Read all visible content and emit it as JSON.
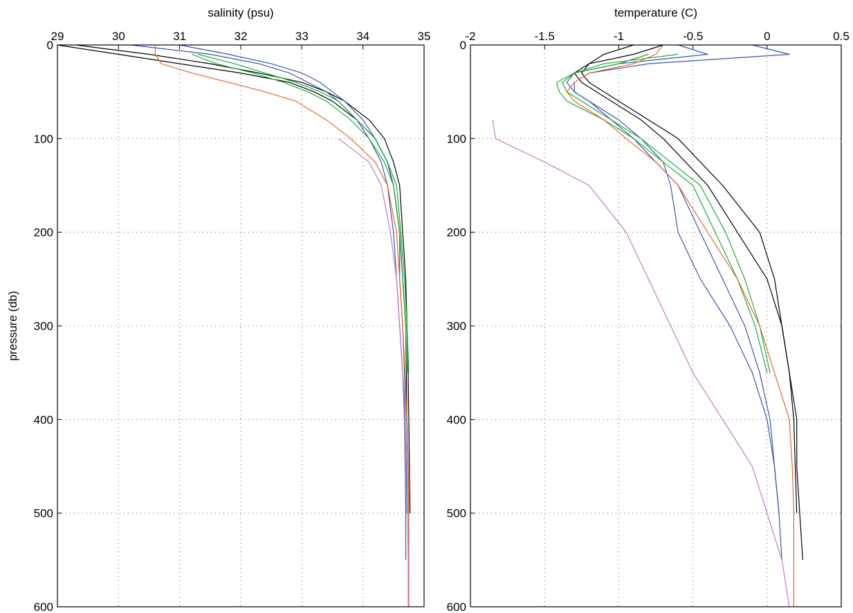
{
  "chart_data": [
    {
      "type": "line",
      "xlabel": "salinity (psu)",
      "ylabel": "pressure (db)",
      "xlim": [
        29,
        35
      ],
      "xticks": [
        29,
        30,
        31,
        32,
        33,
        34,
        35
      ],
      "ylim": [
        0,
        600
      ],
      "yticks": [
        0,
        100,
        200,
        300,
        400,
        500,
        600
      ],
      "y_reversed": true,
      "x_axis_position": "top",
      "grid": true,
      "y": [
        0,
        10,
        20,
        30,
        40,
        50,
        60,
        80,
        100,
        125,
        150,
        200,
        250,
        300,
        350,
        400,
        450,
        500,
        550,
        600
      ],
      "series": [
        {
          "color": "#000000",
          "values": [
            29,
            30,
            31,
            32,
            32.8,
            33.2,
            33.5,
            33.9,
            34.2,
            34.4,
            34.5,
            34.6,
            34.65,
            34.7,
            34.71,
            34.72,
            34.74,
            34.75,
            34.75,
            null
          ]
        },
        {
          "color": "#000000",
          "values": [
            29.3,
            30.5,
            31.5,
            32.3,
            33.0,
            33.4,
            33.7,
            34.1,
            34.35,
            34.5,
            34.6,
            34.65,
            34.7,
            34.72,
            34.74,
            34.75,
            34.76,
            34.77,
            null,
            null
          ]
        },
        {
          "color": "#3b55a8",
          "values": [
            30.2,
            31.5,
            32.3,
            32.8,
            33.1,
            33.4,
            33.6,
            33.9,
            34.1,
            34.3,
            34.4,
            34.5,
            34.55,
            34.6,
            34.65,
            34.68,
            34.69,
            34.7,
            34.7,
            null
          ]
        },
        {
          "color": "#3b55a8",
          "values": [
            31.0,
            31.8,
            32.5,
            33.0,
            33.3,
            33.5,
            33.7,
            34.0,
            34.2,
            34.4,
            34.5,
            34.6,
            34.6,
            34.65,
            34.68,
            34.7,
            34.71,
            34.72,
            null,
            null
          ]
        },
        {
          "color": "#1aab3c",
          "values": [
            null,
            31.2,
            31.6,
            32.2,
            32.7,
            33.1,
            33.4,
            33.8,
            34.1,
            34.35,
            34.5,
            34.6,
            34.65,
            34.7,
            34.72,
            null,
            null,
            null,
            null,
            null
          ]
        },
        {
          "color": "#1aab3c",
          "values": [
            null,
            31.3,
            31.9,
            32.4,
            32.9,
            33.3,
            33.6,
            33.9,
            34.2,
            34.4,
            34.55,
            34.62,
            34.68,
            34.72,
            34.75,
            null,
            null,
            null,
            null,
            null
          ]
        },
        {
          "color": "#e8652a",
          "values": [
            30.6,
            30.6,
            30.7,
            31.2,
            31.8,
            32.4,
            32.9,
            33.4,
            33.8,
            34.2,
            34.4,
            34.55,
            34.6,
            34.65,
            34.69,
            34.72,
            34.74,
            34.75,
            34.75,
            34.75
          ]
        },
        {
          "color": "#c27ac2",
          "values": [
            null,
            null,
            null,
            null,
            null,
            null,
            null,
            null,
            33.6,
            34.1,
            34.3,
            34.45,
            34.55,
            34.6,
            34.65,
            34.7,
            34.72,
            34.73,
            34.74,
            34.74
          ]
        }
      ]
    },
    {
      "type": "line",
      "xlabel": "temperature (C)",
      "xlim": [
        -2,
        0.5
      ],
      "xticks": [
        -2,
        -1.5,
        -1,
        -0.5,
        0,
        0.5
      ],
      "ylim": [
        0,
        600
      ],
      "yticks": [
        0,
        100,
        200,
        300,
        400,
        500,
        600
      ],
      "y_reversed": true,
      "x_axis_position": "top",
      "grid": true,
      "y": [
        0,
        10,
        20,
        30,
        40,
        50,
        60,
        80,
        100,
        125,
        150,
        200,
        250,
        300,
        350,
        400,
        450,
        500,
        550,
        600
      ],
      "series": [
        {
          "color": "#000000",
          "values": [
            -0.9,
            -1.1,
            -1.2,
            -1.25,
            -1.2,
            -1.1,
            -1.0,
            -0.8,
            -0.6,
            -0.45,
            -0.3,
            -0.05,
            0.05,
            0.1,
            0.15,
            0.2,
            0.2,
            0.22,
            0.24,
            null
          ]
        },
        {
          "color": "#000000",
          "values": [
            -0.7,
            -0.9,
            -1.2,
            -1.3,
            -1.25,
            -1.15,
            -1.05,
            -0.85,
            -0.7,
            -0.55,
            -0.4,
            -0.2,
            0.0,
            0.1,
            0.15,
            0.18,
            0.19,
            0.2,
            null,
            null
          ]
        },
        {
          "color": "#3b55a8",
          "values": [
            -0.1,
            0.15,
            -0.8,
            -1.2,
            -1.3,
            -1.3,
            -1.2,
            -1.0,
            -0.85,
            -0.7,
            -0.65,
            -0.6,
            -0.45,
            -0.25,
            -0.1,
            0.0,
            0.05,
            0.08,
            0.1,
            null
          ]
        },
        {
          "color": "#3b55a8",
          "values": [
            -0.6,
            -0.4,
            -1.0,
            -1.3,
            -1.35,
            -1.3,
            -1.2,
            -1.05,
            -0.9,
            -0.75,
            -0.6,
            -0.45,
            -0.3,
            -0.15,
            -0.05,
            0.02,
            0.05,
            0.08,
            null,
            null
          ]
        },
        {
          "color": "#1aab3c",
          "values": [
            null,
            -0.8,
            -1.0,
            -1.3,
            -1.42,
            -1.4,
            -1.35,
            -1.1,
            -0.9,
            -0.7,
            -0.5,
            -0.35,
            -0.2,
            -0.08,
            0.0,
            null,
            null,
            null,
            null,
            null
          ]
        },
        {
          "color": "#1aab3c",
          "values": [
            null,
            -0.6,
            -1.1,
            -1.3,
            -1.38,
            -1.35,
            -1.25,
            -1.05,
            -0.85,
            -0.65,
            -0.45,
            -0.28,
            -0.15,
            -0.05,
            0.02,
            null,
            null,
            null,
            null,
            null
          ]
        },
        {
          "color": "#e8652a",
          "values": [
            -0.7,
            -0.75,
            -0.9,
            -1.2,
            -1.3,
            -1.35,
            -1.3,
            -1.1,
            -0.95,
            -0.75,
            -0.6,
            -0.4,
            -0.2,
            -0.05,
            0.05,
            0.15,
            0.17,
            0.18,
            0.18,
            0.18
          ]
        },
        {
          "color": "#c27ac2",
          "values": [
            null,
            null,
            null,
            null,
            null,
            null,
            null,
            -1.85,
            -1.83,
            -1.5,
            -1.2,
            -0.95,
            -0.8,
            -0.65,
            -0.5,
            -0.3,
            -0.1,
            0.0,
            0.1,
            0.15
          ]
        }
      ]
    }
  ]
}
